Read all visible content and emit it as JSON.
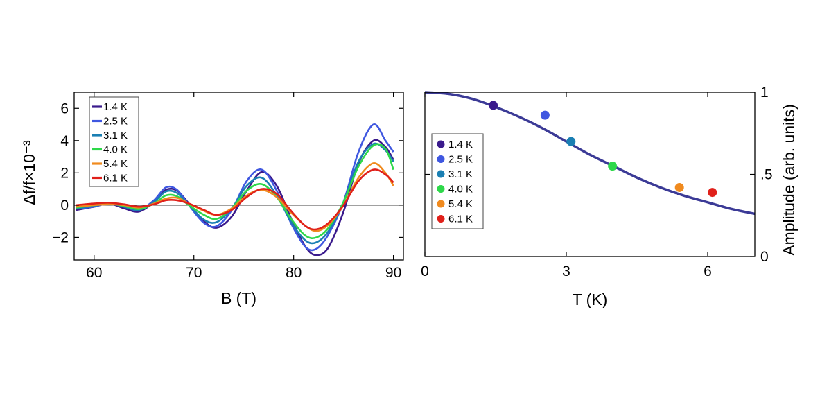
{
  "chart_data": [
    {
      "type": "line",
      "xlabel": "B (T)",
      "ylabel": "Δf/f×10⁻³",
      "xlim": [
        58,
        91
      ],
      "ylim": [
        -3.4,
        7.0
      ],
      "xticks": [
        60,
        70,
        80,
        90
      ],
      "xtick_labels": [
        "60",
        "70",
        "80",
        "90"
      ],
      "yticks": [
        -2,
        0,
        2,
        4,
        6
      ],
      "ytick_labels": [
        "−2",
        "0",
        "2",
        "4",
        "6"
      ],
      "zero_line": true,
      "grid": false,
      "legend_position": "top-left",
      "series": [
        {
          "name": "1.4 K",
          "color": "#3a1a8c",
          "x": [
            58.2,
            60,
            61.5,
            63,
            64.5,
            66,
            67.2,
            68.3,
            69.5,
            71,
            72.3,
            73.8,
            75.3,
            76.8,
            78.3,
            79.8,
            81.2,
            82.3,
            83.5,
            85,
            86.5,
            88,
            89.2,
            90
          ],
          "y": [
            -0.3,
            -0.1,
            0.1,
            -0.2,
            -0.4,
            0.2,
            0.95,
            0.9,
            0.1,
            -1.0,
            -1.4,
            -0.7,
            0.9,
            2.05,
            1.2,
            -0.9,
            -2.6,
            -3.1,
            -2.6,
            -0.4,
            2.6,
            4.0,
            3.6,
            2.8
          ]
        },
        {
          "name": "2.5 K",
          "color": "#3f57e0",
          "x": [
            58.2,
            60,
            61.5,
            63,
            64.5,
            66,
            67.2,
            68.3,
            69.5,
            71,
            72.3,
            73.8,
            75.3,
            76.8,
            78.3,
            79.8,
            81.2,
            82.3,
            83.5,
            85,
            86.5,
            88,
            89.2,
            90
          ],
          "y": [
            -0.2,
            -0.1,
            0.15,
            -0.1,
            -0.3,
            0.3,
            1.1,
            0.95,
            0.0,
            -1.1,
            -1.3,
            -0.3,
            1.5,
            2.2,
            0.9,
            -1.2,
            -2.6,
            -2.7,
            -1.8,
            0.2,
            3.3,
            5.0,
            4.0,
            3.3
          ]
        },
        {
          "name": "3.1 K",
          "color": "#1a7fb3",
          "x": [
            58.2,
            60,
            61.5,
            63,
            64.5,
            66,
            67.2,
            68.3,
            69.5,
            71,
            72.3,
            73.8,
            75.3,
            76.8,
            78.3,
            79.8,
            81.2,
            82.3,
            83.5,
            85,
            86.5,
            88,
            89.2,
            90
          ],
          "y": [
            -0.2,
            -0.05,
            0.1,
            -0.1,
            -0.3,
            0.2,
            0.85,
            0.75,
            0.0,
            -0.9,
            -1.05,
            -0.2,
            1.2,
            1.7,
            0.6,
            -1.1,
            -2.2,
            -2.3,
            -1.6,
            0.2,
            2.7,
            3.8,
            3.4,
            2.7
          ]
        },
        {
          "name": "4.0 K",
          "color": "#2ed84a",
          "x": [
            58.2,
            60,
            61.5,
            63,
            64.5,
            66,
            67.2,
            68.3,
            69.5,
            71,
            72.3,
            73.8,
            75.3,
            76.8,
            78.3,
            79.8,
            81.2,
            82.3,
            83.5,
            85,
            86.5,
            88,
            89.2,
            90
          ],
          "y": [
            -0.15,
            0.0,
            0.1,
            -0.05,
            -0.25,
            0.1,
            0.6,
            0.55,
            0.0,
            -0.6,
            -0.85,
            -0.2,
            0.9,
            1.3,
            0.5,
            -0.9,
            -1.9,
            -2.0,
            -1.4,
            0.2,
            2.4,
            3.7,
            3.5,
            2.2
          ]
        },
        {
          "name": "5.4 K",
          "color": "#f08a1e",
          "x": [
            58.2,
            60,
            61.5,
            63,
            64.5,
            66,
            67.2,
            68.3,
            69.5,
            71,
            72.3,
            73.8,
            75.3,
            76.8,
            78.3,
            79.8,
            81.2,
            82.3,
            83.5,
            85,
            86.5,
            88,
            89.2,
            90
          ],
          "y": [
            -0.1,
            0.0,
            0.05,
            0.0,
            -0.15,
            0.1,
            0.4,
            0.45,
            0.1,
            -0.35,
            -0.6,
            -0.2,
            0.6,
            0.95,
            0.5,
            -0.5,
            -1.3,
            -1.6,
            -1.2,
            0.0,
            1.7,
            2.6,
            2.0,
            1.2
          ]
        },
        {
          "name": "6.1 K",
          "color": "#e0201a",
          "x": [
            58.2,
            60,
            61.5,
            63,
            64.5,
            66,
            67.2,
            68.3,
            69.5,
            71,
            72.3,
            73.8,
            75.3,
            76.8,
            78.3,
            79.8,
            81.2,
            82.3,
            83.5,
            85,
            86.5,
            88,
            89.2,
            90
          ],
          "y": [
            0.0,
            0.1,
            0.15,
            0.05,
            -0.1,
            0.05,
            0.3,
            0.3,
            0.1,
            -0.3,
            -0.6,
            -0.3,
            0.5,
            1.0,
            0.7,
            -0.4,
            -1.3,
            -1.5,
            -1.1,
            0.0,
            1.5,
            2.2,
            1.9,
            1.4
          ]
        }
      ]
    },
    {
      "type": "scatter",
      "xlabel": "T (K)",
      "ylabel": "Amplitude (arb. units)",
      "xlim": [
        0,
        7.0
      ],
      "ylim": [
        0,
        1.0
      ],
      "xticks": [
        0,
        3,
        6
      ],
      "xtick_labels": [
        "0",
        "3",
        "6"
      ],
      "yticks": [
        0,
        0.5,
        1
      ],
      "ytick_labels": [
        "0",
        ".5",
        "1"
      ],
      "y_axis_side": "right",
      "grid": false,
      "legend_position": "left",
      "series": [
        {
          "name": "1.4 K",
          "color": "#3a1a8c",
          "x": [
            1.45
          ],
          "y": [
            0.92
          ]
        },
        {
          "name": "2.5 K",
          "color": "#3f57e0",
          "x": [
            2.55
          ],
          "y": [
            0.86
          ]
        },
        {
          "name": "3.1 K",
          "color": "#1a7fb3",
          "x": [
            3.1
          ],
          "y": [
            0.7
          ]
        },
        {
          "name": "4.0 K",
          "color": "#2ed84a",
          "x": [
            3.98
          ],
          "y": [
            0.55
          ]
        },
        {
          "name": "5.4 K",
          "color": "#f08a1e",
          "x": [
            5.4
          ],
          "y": [
            0.42
          ]
        },
        {
          "name": "6.1 K",
          "color": "#e0201a",
          "x": [
            6.1
          ],
          "y": [
            0.39
          ]
        }
      ],
      "fit_curve": {
        "color": "#3b3a96",
        "x": [
          0,
          0.5,
          1,
          1.5,
          2,
          2.5,
          3,
          3.5,
          4,
          4.5,
          5,
          5.5,
          6,
          6.5,
          7.0
        ],
        "y": [
          1.0,
          0.99,
          0.96,
          0.91,
          0.85,
          0.78,
          0.7,
          0.62,
          0.55,
          0.48,
          0.42,
          0.37,
          0.33,
          0.29,
          0.26
        ]
      }
    }
  ]
}
